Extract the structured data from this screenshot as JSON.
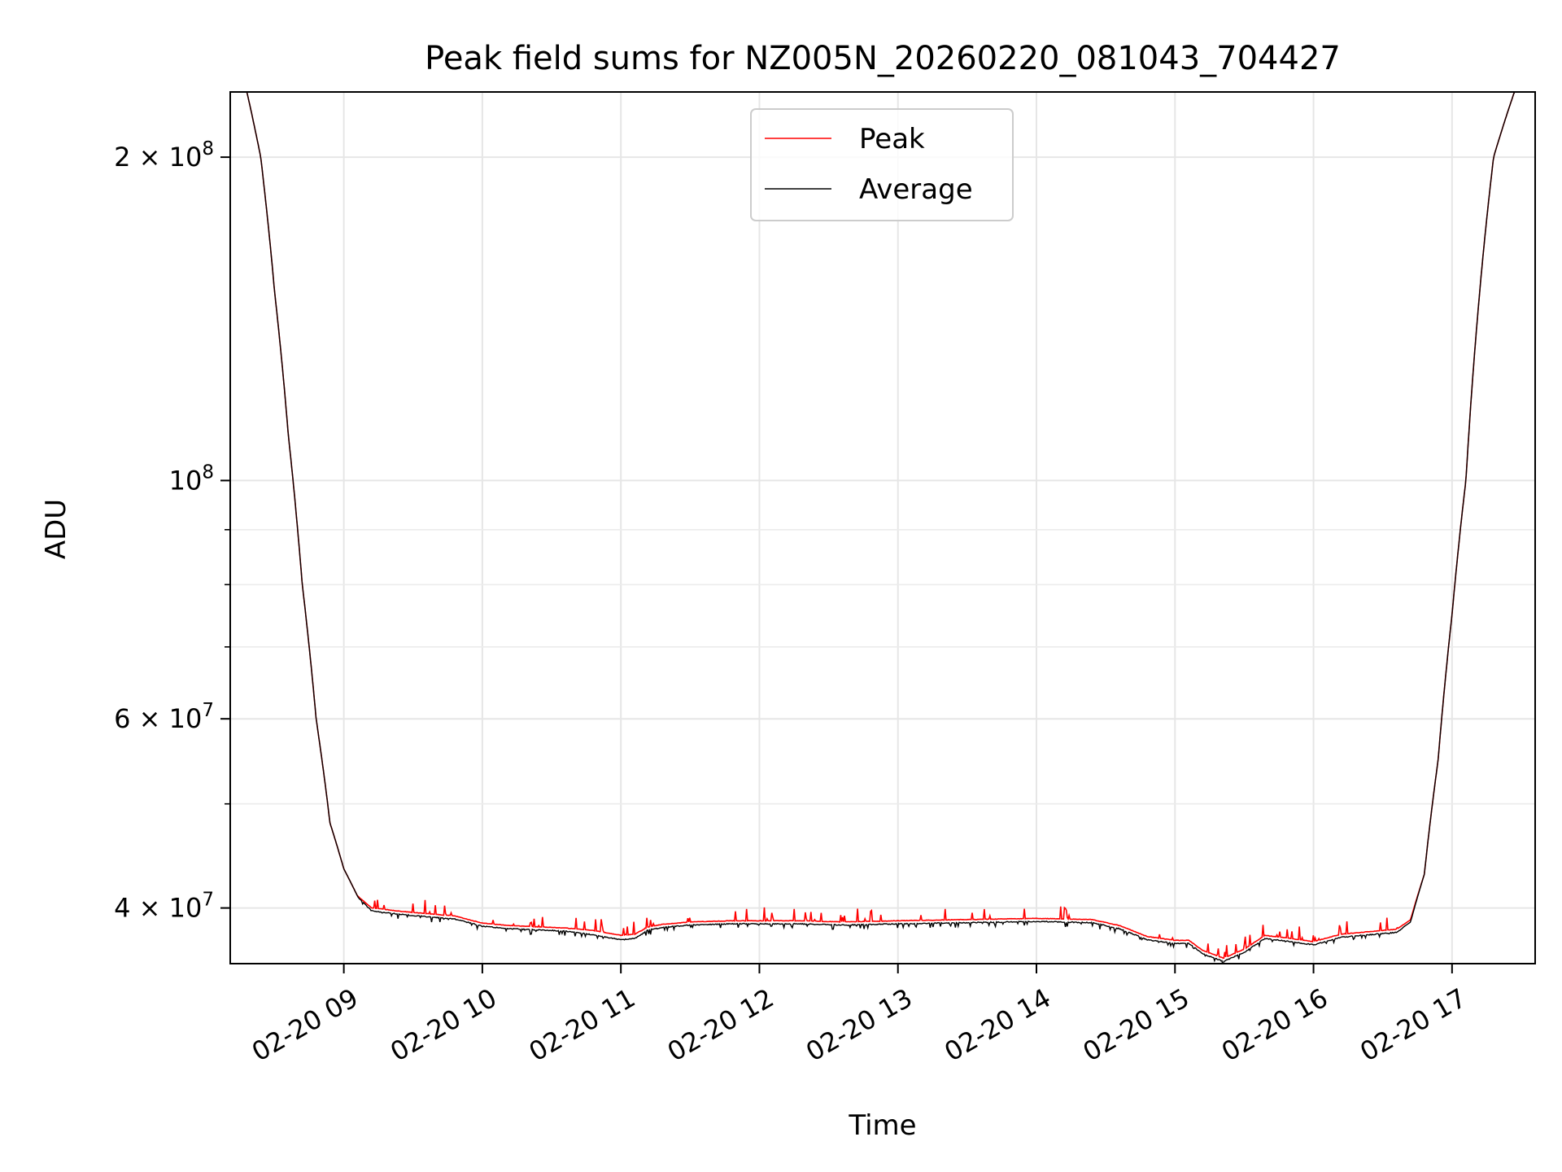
{
  "chart_data": {
    "type": "line",
    "title": "Peak field sums for NZ005N_20260220_081043_704427",
    "xlabel": "Time",
    "ylabel": "ADU",
    "yscale": "log",
    "ylim": [
      35500000,
      230000000
    ],
    "xlim": [
      8.18,
      17.6
    ],
    "grid": true,
    "legend_position": "upper center",
    "x_ticks": [
      {
        "value": 9,
        "label": "02-20 09"
      },
      {
        "value": 10,
        "label": "02-20 10"
      },
      {
        "value": 11,
        "label": "02-20 11"
      },
      {
        "value": 12,
        "label": "02-20 12"
      },
      {
        "value": 13,
        "label": "02-20 13"
      },
      {
        "value": 14,
        "label": "02-20 14"
      },
      {
        "value": 15,
        "label": "02-20 15"
      },
      {
        "value": 16,
        "label": "02-20 16"
      },
      {
        "value": 17,
        "label": "02-20 17"
      }
    ],
    "y_ticks": [
      {
        "value": 40000000,
        "label": "4 × 10⁷",
        "base": "4 × 10",
        "exp": "7"
      },
      {
        "value": 60000000,
        "label": "6 × 10⁷",
        "base": "6 × 10",
        "exp": "7"
      },
      {
        "value": 100000000,
        "label": "10⁸",
        "base": "10",
        "exp": "8"
      },
      {
        "value": 200000000,
        "label": "2 × 10⁸",
        "base": "2 × 10",
        "exp": "8"
      }
    ],
    "y_minor_ticks": [
      50000000,
      70000000,
      80000000,
      90000000
    ],
    "series": [
      {
        "name": "Peak",
        "color": "#ff0000",
        "x": [
          8.18,
          8.3,
          8.4,
          8.5,
          8.6,
          8.7,
          8.8,
          8.9,
          9.0,
          9.1,
          9.2,
          9.4,
          9.6,
          9.8,
          10.0,
          10.2,
          10.4,
          10.6,
          10.8,
          11.0,
          11.1,
          11.2,
          11.3,
          11.5,
          11.8,
          12.0,
          12.3,
          12.6,
          13.0,
          13.5,
          14.0,
          14.4,
          14.6,
          14.8,
          15.0,
          15.1,
          15.2,
          15.35,
          15.5,
          15.65,
          15.8,
          16.0,
          16.2,
          16.4,
          16.6,
          16.7,
          16.8,
          16.9,
          17.0,
          17.1,
          17.2,
          17.3,
          17.45,
          17.6
        ],
        "y": [
          230000000,
          230000000,
          200000000,
          150000000,
          110000000,
          80000000,
          60000000,
          48000000,
          43500000,
          41000000,
          40000000,
          39700000,
          39500000,
          39300000,
          38700000,
          38500000,
          38400000,
          38300000,
          38100000,
          37700000,
          37800000,
          38400000,
          38600000,
          38800000,
          38900000,
          38900000,
          38900000,
          38800000,
          38900000,
          39000000,
          39100000,
          39000000,
          38500000,
          37600000,
          37300000,
          37300000,
          36500000,
          35900000,
          36600000,
          37700000,
          37500000,
          37200000,
          37800000,
          38000000,
          38200000,
          39000000,
          43000000,
          55000000,
          75000000,
          100000000,
          150000000,
          200000000,
          230000000,
          230000000
        ]
      },
      {
        "name": "Average",
        "color": "#000000",
        "x": [
          8.18,
          8.3,
          8.4,
          8.5,
          8.6,
          8.7,
          8.8,
          8.9,
          9.0,
          9.1,
          9.2,
          9.4,
          9.6,
          9.8,
          10.0,
          10.2,
          10.4,
          10.6,
          10.8,
          11.0,
          11.1,
          11.2,
          11.3,
          11.5,
          11.8,
          12.0,
          12.3,
          12.6,
          13.0,
          13.5,
          14.0,
          14.4,
          14.6,
          14.8,
          15.0,
          15.1,
          15.2,
          15.35,
          15.5,
          15.65,
          15.8,
          16.0,
          16.2,
          16.4,
          16.6,
          16.7,
          16.8,
          16.9,
          17.0,
          17.1,
          17.2,
          17.3,
          17.45,
          17.6
        ],
        "y": [
          230000000,
          230000000,
          200000000,
          150000000,
          110000000,
          80000000,
          60000000,
          48000000,
          43500000,
          41000000,
          39800000,
          39500000,
          39300000,
          39100000,
          38500000,
          38300000,
          38200000,
          38100000,
          37800000,
          37400000,
          37500000,
          38200000,
          38400000,
          38600000,
          38700000,
          38700000,
          38700000,
          38600000,
          38700000,
          38800000,
          38900000,
          38800000,
          38300000,
          37400000,
          37100000,
          37100000,
          36300000,
          35700000,
          36400000,
          37500000,
          37300000,
          37000000,
          37600000,
          37800000,
          38000000,
          38800000,
          43000000,
          55000000,
          75000000,
          100000000,
          150000000,
          200000000,
          230000000,
          230000000
        ]
      }
    ]
  }
}
